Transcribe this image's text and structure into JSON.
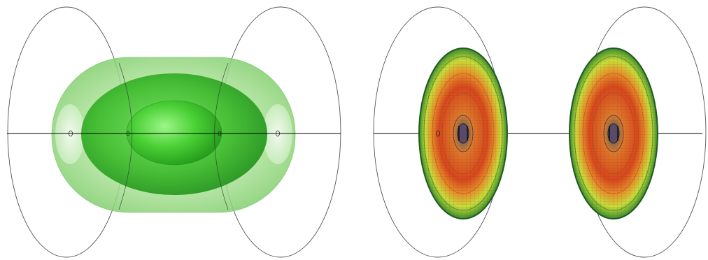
{
  "figure": {
    "panels": [
      {
        "id": "left",
        "style": "translucent nested isosurfaces",
        "shells": 3
      },
      {
        "id": "right",
        "style": "wireframe colour-mapped discs",
        "discs": 2
      }
    ],
    "colors": {
      "outline": "#444444",
      "axis": "#000000",
      "shell_outer": "#9fdc8c",
      "shell_middle": "#38b22a",
      "shell_inner": "#5be046",
      "disc_rim": "#1f6f2a",
      "disc_band_outer": "#cfe03a",
      "disc_band_mid": "#f0a22a",
      "disc_band_inner": "#d9461c",
      "disc_core": "#7a6a8a"
    }
  }
}
